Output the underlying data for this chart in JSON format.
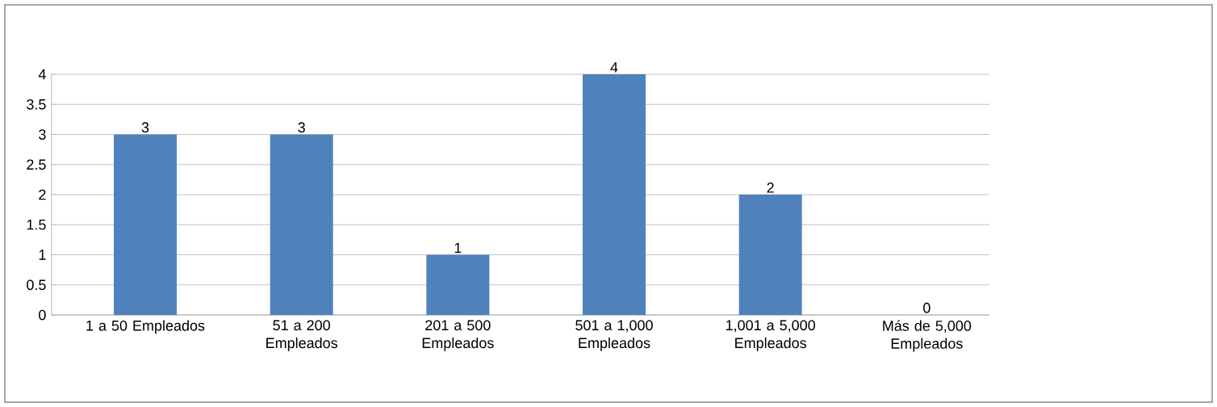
{
  "chart_data": {
    "type": "bar",
    "categories": [
      "1 a 50 Empleados",
      "51 a 200 Empleados",
      "201 a 500 Empleados",
      "501 a 1,000 Empleados",
      "1,001 a 5,000 Empleados",
      "Más de 5,000 Empleados"
    ],
    "values": [
      3,
      3,
      1,
      4,
      2,
      0
    ],
    "color": "#4f81bd",
    "ylim": [
      0,
      4
    ],
    "yticks": [
      0,
      0.5,
      1,
      1.5,
      2,
      2.5,
      3,
      3.5,
      4
    ],
    "grid": "y",
    "data_labels": true
  }
}
